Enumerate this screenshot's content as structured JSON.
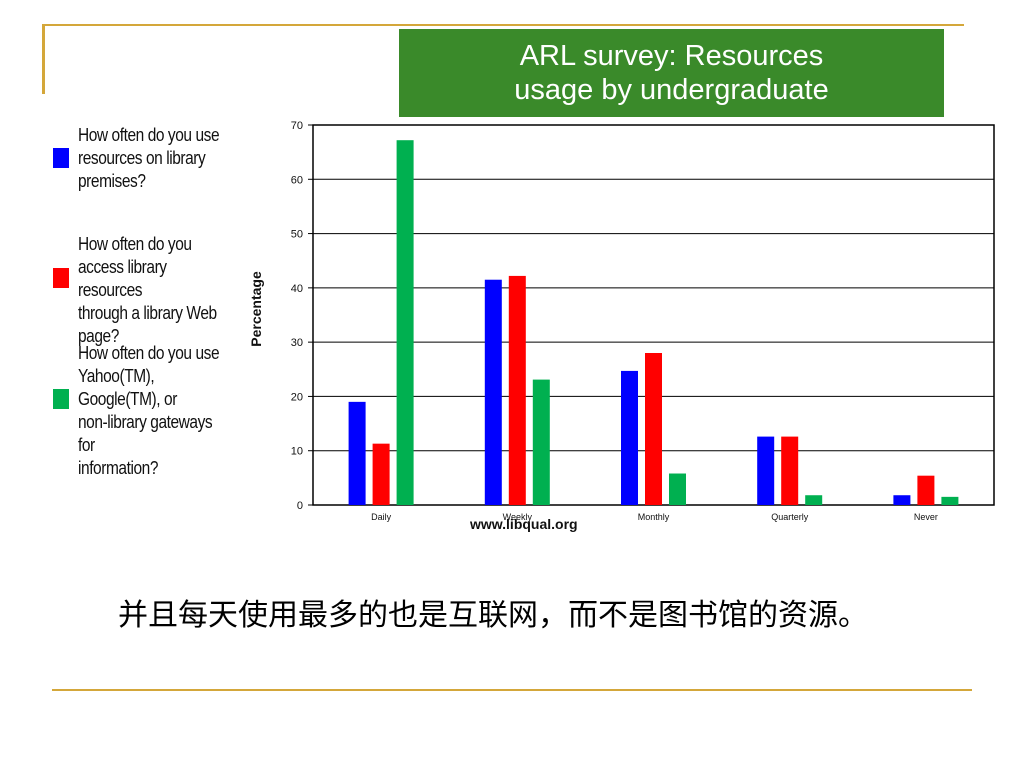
{
  "slide": {
    "title_line1": "ARL survey: Resources",
    "title_line2": "usage by undergraduate",
    "source": "www.libqual.org",
    "caption": "并且每天使用最多的也是互联网，而不是图书馆的资源。",
    "colors": {
      "rule": "#d4a73a",
      "title_bg": "#3a8a2a"
    }
  },
  "chart_data": {
    "type": "bar",
    "title": "",
    "ylabel": "Percentage",
    "xlabel": "",
    "ylim": [
      0,
      70
    ],
    "yticks": [
      0,
      10,
      20,
      30,
      40,
      50,
      60,
      70
    ],
    "grid": true,
    "legend_position": "left",
    "categories": [
      "Daily",
      "Weekly",
      "Monthly",
      "Quarterly",
      "Never"
    ],
    "series": [
      {
        "name": "How often do you use\nresources on library\npremises?",
        "color": "#0000ff",
        "values": [
          19,
          41.5,
          24.7,
          12.6,
          1.8
        ]
      },
      {
        "name": "How often do you\naccess library resources\nthrough a library Web\npage?",
        "color": "#ff0000",
        "values": [
          11.3,
          42.2,
          28,
          12.6,
          5.4
        ]
      },
      {
        "name": "How often do you use\nYahoo(TM),\nGoogle(TM), or\nnon-library gateways for\ninformation?",
        "color": "#00b050",
        "values": [
          67.2,
          23.1,
          5.8,
          1.8,
          1.5
        ]
      }
    ]
  }
}
